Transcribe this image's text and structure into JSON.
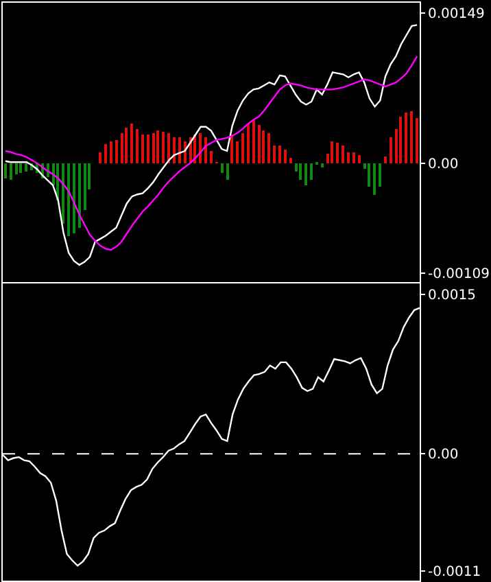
{
  "chart_data": [
    {
      "type": "bar",
      "categories": [
        null,
        null,
        null,
        null,
        null,
        null,
        null,
        null,
        null,
        null,
        null,
        null,
        null,
        null,
        null,
        null,
        null,
        null,
        null,
        null,
        null,
        null,
        null,
        null,
        null,
        null,
        null,
        null,
        null,
        null,
        null,
        null,
        null,
        null,
        null,
        null,
        null,
        null,
        null,
        null,
        null,
        null,
        null,
        null,
        null,
        null,
        null,
        null,
        null,
        null,
        null,
        null,
        null,
        null,
        null,
        null,
        null,
        null,
        null,
        null,
        null,
        null,
        null,
        null,
        null,
        null,
        null,
        null,
        null,
        null,
        null,
        null,
        null,
        null,
        null,
        null,
        null,
        null,
        null
      ],
      "ylim": [
        -0.00118,
        0.00159
      ],
      "yticks": [
        {
          "value": 0.00149,
          "label": "0.00149"
        },
        {
          "value": 0,
          "label": "0.00"
        },
        {
          "value": -0.00109,
          "label": "-0.00109"
        }
      ],
      "tick_labels": "y",
      "series": [
        {
          "type": "bar",
          "colors": [
            "#118811",
            "#118811",
            "#118811",
            "#118811",
            "#118811",
            "#118811",
            "#118811",
            "#118811",
            "#118811",
            "#118811",
            "#118811",
            "#118811",
            "#118811",
            "#118811",
            "#118811",
            "#118811",
            "#118811",
            "#e01010",
            "#e01010",
            "#e01010",
            "#e01010",
            "#e01010",
            "#e01010",
            "#e01010",
            "#e01010",
            "#e01010",
            "#e01010",
            "#e01010",
            "#e01010",
            "#e01010",
            "#e01010",
            "#e01010",
            "#e01010",
            "#e01010",
            "#e01010",
            "#e01010",
            "#e01010",
            "#e01010",
            "#e01010",
            "#e01010",
            "#e01010",
            "#118811",
            "#118811",
            "#e01010",
            "#e01010",
            "#e01010",
            "#e01010",
            "#e01010",
            "#e01010",
            "#e01010",
            "#e01010",
            "#e01010",
            "#e01010",
            "#e01010",
            "#e01010",
            "#118811",
            "#118811",
            "#118811",
            "#118811",
            "#118811",
            "#118811",
            "#e01010",
            "#e01010",
            "#e01010",
            "#e01010",
            "#e01010",
            "#e01010",
            "#e01010",
            "#118811",
            "#118811",
            "#118811",
            "#118811",
            "#e01010",
            "#e01010",
            "#e01010",
            "#e01010",
            "#e01010",
            "#e01010",
            "#e01010"
          ],
          "values": [
            -0.00015,
            -0.00016,
            -0.00011,
            -0.0001,
            -8e-05,
            -7e-05,
            -0.0001,
            -0.00015,
            -0.00014,
            -0.00022,
            -0.00037,
            -0.0006,
            -0.00073,
            -0.00069,
            -0.00064,
            -0.00046,
            -0.00026,
            0,
            0.0001,
            0.00019,
            0.00022,
            0.00023,
            0.0003,
            0.00035,
            0.00039,
            0.00034,
            0.00029,
            0.00029,
            0.0003,
            0.00033,
            0.00031,
            0.0003,
            0.00026,
            0.00026,
            0.00021,
            0.00026,
            0.00029,
            0.0003,
            0.00025,
            0.00012,
            1e-05,
            -0.0001,
            -0.00016,
            0.00029,
            0.00021,
            0.0003,
            0.00039,
            0.00043,
            0.00038,
            0.00033,
            0.0003,
            0.00017,
            0.00018,
            0.00013,
            5e-05,
            -8e-05,
            -0.00016,
            -0.00022,
            -0.00016,
            -1e-05,
            -5e-05,
            9e-05,
            0.00022,
            0.0002,
            0.00017,
            0.0001,
            0.00011,
            8e-05,
            -6e-05,
            -0.00023,
            -0.00032,
            -0.00023,
            7e-05,
            0.00026,
            0.00034,
            0.00046,
            0.0005,
            0.00052,
            0.00044
          ]
        },
        {
          "type": "line",
          "color": "#ffffff",
          "values": [
            2e-05,
            1e-05,
            1e-05,
            1e-05,
            1e-05,
            -2e-05,
            -6e-05,
            -0.00012,
            -0.00017,
            -0.00022,
            -0.00037,
            -0.00069,
            -0.00089,
            -0.00097,
            -0.00101,
            -0.00098,
            -0.00093,
            -0.00078,
            -0.00075,
            -0.00072,
            -0.00068,
            -0.00064,
            -0.00052,
            -0.0004,
            -0.00033,
            -0.00031,
            -0.0003,
            -0.00025,
            -0.00019,
            -0.00011,
            -4e-05,
            3e-05,
            8e-05,
            0.0001,
            0.00012,
            0.0002,
            0.00028,
            0.00036,
            0.00036,
            0.00032,
            0.00023,
            0.00014,
            0.00012,
            0.00037,
            0.00052,
            0.00062,
            0.00069,
            0.00073,
            0.00074,
            0.00077,
            0.0008,
            0.00078,
            0.00087,
            0.00086,
            0.00077,
            0.00068,
            0.00061,
            0.00058,
            0.00061,
            0.00073,
            0.00068,
            0.00078,
            0.0009,
            0.00089,
            0.00088,
            0.00085,
            0.00088,
            0.0009,
            0.0008,
            0.00064,
            0.00056,
            0.00062,
            0.00086,
            0.00098,
            0.00106,
            0.00118,
            0.00127,
            0.00136,
            0.00137
          ]
        },
        {
          "type": "line",
          "color": "#ff00ff",
          "values": [
            0.00012,
            0.00011,
            9e-05,
            8e-05,
            6e-05,
            3e-05,
            0,
            -4e-05,
            -8e-05,
            -0.00011,
            -0.00015,
            -0.00021,
            -0.00028,
            -0.00039,
            -0.00051,
            -0.00061,
            -0.00071,
            -0.00077,
            -0.00082,
            -0.00085,
            -0.00086,
            -0.00083,
            -0.00078,
            -0.0007,
            -0.00062,
            -0.00055,
            -0.00048,
            -0.00043,
            -0.00037,
            -0.00031,
            -0.00024,
            -0.00018,
            -0.00013,
            -8e-05,
            -4e-05,
            0,
            5e-05,
            0.00011,
            0.00017,
            0.0002,
            0.00023,
            0.00024,
            0.00025,
            0.00027,
            0.0003,
            0.00034,
            0.00039,
            0.00043,
            0.00046,
            0.00052,
            0.00059,
            0.00066,
            0.00073,
            0.00077,
            0.00079,
            0.00078,
            0.00077,
            0.00075,
            0.00074,
            0.00073,
            0.00073,
            0.00073,
            0.00073,
            0.00074,
            0.00075,
            0.00077,
            0.00079,
            0.00081,
            0.00083,
            0.00082,
            0.0008,
            0.00078,
            0.00076,
            0.00078,
            0.0008,
            0.00084,
            0.00089,
            0.00097,
            0.00106
          ]
        }
      ]
    },
    {
      "type": "line",
      "categories": [
        null,
        null,
        null,
        null,
        null,
        null,
        null,
        null,
        null,
        null,
        null,
        null,
        null,
        null,
        null,
        null,
        null,
        null,
        null,
        null,
        null,
        null,
        null,
        null,
        null,
        null,
        null,
        null,
        null,
        null,
        null,
        null,
        null,
        null,
        null,
        null,
        null,
        null,
        null,
        null,
        null,
        null,
        null,
        null,
        null,
        null,
        null,
        null,
        null,
        null,
        null,
        null,
        null,
        null,
        null,
        null,
        null,
        null,
        null,
        null,
        null,
        null,
        null,
        null,
        null,
        null,
        null,
        null,
        null,
        null,
        null,
        null,
        null,
        null,
        null,
        null,
        null,
        null,
        null
      ],
      "ylim": [
        -0.00119,
        0.0016
      ],
      "yticks": [
        0.0015,
        {
          "value": 0,
          "label": "0.00"
        },
        -0.0011
      ],
      "tick_labels": "y",
      "ref_lines": [
        {
          "axis": "y",
          "value": 0,
          "color": "#ffffff",
          "line_style": "dashed"
        }
      ],
      "series": [
        {
          "color": "#ffffff",
          "values": [
            -1e-05,
            -6e-05,
            -4e-05,
            -3e-05,
            -6e-05,
            -7e-05,
            -0.00012,
            -0.00018,
            -0.00021,
            -0.00027,
            -0.00044,
            -0.00072,
            -0.00094,
            -0.001,
            -0.00105,
            -0.00101,
            -0.00094,
            -0.00079,
            -0.00074,
            -0.00072,
            -0.00068,
            -0.00065,
            -0.00053,
            -0.00042,
            -0.00034,
            -0.00031,
            -0.00029,
            -0.00024,
            -0.00014,
            -8e-05,
            -3e-05,
            3e-05,
            5e-05,
            9e-05,
            0.00012,
            0.0002,
            0.00028,
            0.00035,
            0.00037,
            0.00029,
            0.00022,
            0.00014,
            0.00012,
            0.00037,
            0.00051,
            0.00061,
            0.00068,
            0.00074,
            0.00075,
            0.00077,
            0.00083,
            0.0008,
            0.00086,
            0.00086,
            0.0008,
            0.00072,
            0.00062,
            0.00059,
            0.00061,
            0.00072,
            0.00068,
            0.00078,
            0.00089,
            0.00088,
            0.00087,
            0.00085,
            0.00088,
            0.0009,
            0.0008,
            0.00065,
            0.00057,
            0.00061,
            0.00083,
            0.00098,
            0.00106,
            0.00119,
            0.00128,
            0.00135,
            0.00137
          ]
        }
      ]
    }
  ]
}
